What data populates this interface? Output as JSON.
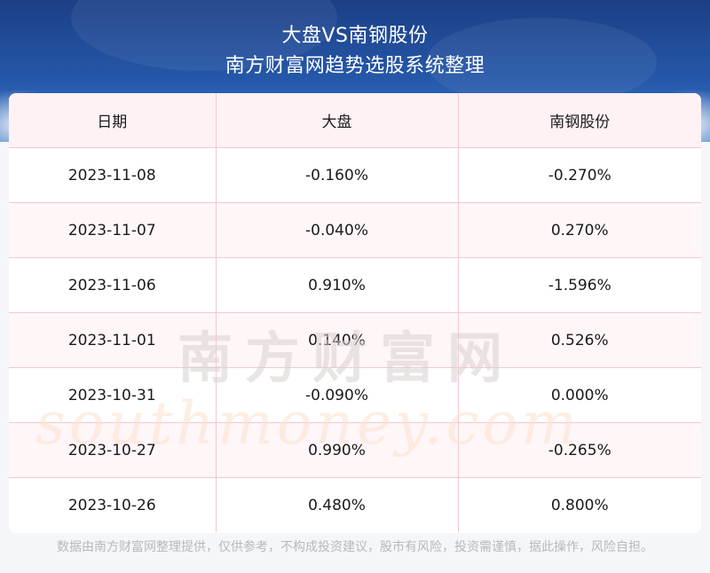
{
  "header": {
    "title": "大盘VS南钢股份",
    "subtitle": "南方财富网趋势选股系统整理"
  },
  "table": {
    "columns": [
      "日期",
      "大盘",
      "南钢股份"
    ],
    "rows": [
      [
        "2023-11-08",
        "-0.160%",
        "-0.270%"
      ],
      [
        "2023-11-07",
        "-0.040%",
        "0.270%"
      ],
      [
        "2023-11-06",
        "0.910%",
        "-1.596%"
      ],
      [
        "2023-11-01",
        "0.140%",
        "0.526%"
      ],
      [
        "2023-10-31",
        "-0.090%",
        "0.000%"
      ],
      [
        "2023-10-27",
        "0.990%",
        "-0.265%"
      ],
      [
        "2023-10-26",
        "0.480%",
        "0.800%"
      ]
    ]
  },
  "watermark": {
    "cn": "南方财富网",
    "en": "southmoney.com"
  },
  "footer": {
    "disclaimer": "数据由南方财富网整理提供，仅供参考，不构成投资建议，股市有风险，投资需谨慎，据此操作，风险自担。"
  },
  "colors": {
    "header_dark": "#1c3f86",
    "header_light": "#3d78c8",
    "grid_line": "#f0c9d0",
    "header_row_bg": "#fff2f4",
    "watermark_cn": "#d9d0d0",
    "watermark_en": "#fbe3d2"
  }
}
